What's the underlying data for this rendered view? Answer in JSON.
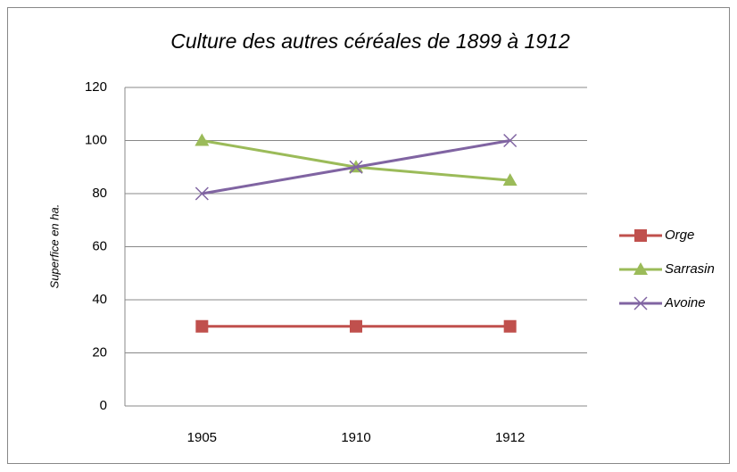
{
  "chart_data": {
    "type": "line",
    "title": "Culture des autres céréales de 1899 à 1912",
    "y_label": "Superfice en ha.",
    "categories": [
      "1905",
      "1910",
      "1912"
    ],
    "series": [
      {
        "name": "Orge",
        "color": "#c0504d",
        "marker": "square",
        "values": [
          30,
          30,
          30
        ]
      },
      {
        "name": "Sarrasin",
        "color": "#9bbb59",
        "marker": "triangle",
        "values": [
          100,
          90,
          85
        ]
      },
      {
        "name": "Avoine",
        "color": "#8064a2",
        "marker": "x",
        "values": [
          80,
          90,
          100
        ]
      }
    ],
    "ylim": [
      0,
      120
    ],
    "yticks": [
      0,
      20,
      40,
      60,
      80,
      100,
      120
    ],
    "grid": true,
    "legend": "right"
  }
}
